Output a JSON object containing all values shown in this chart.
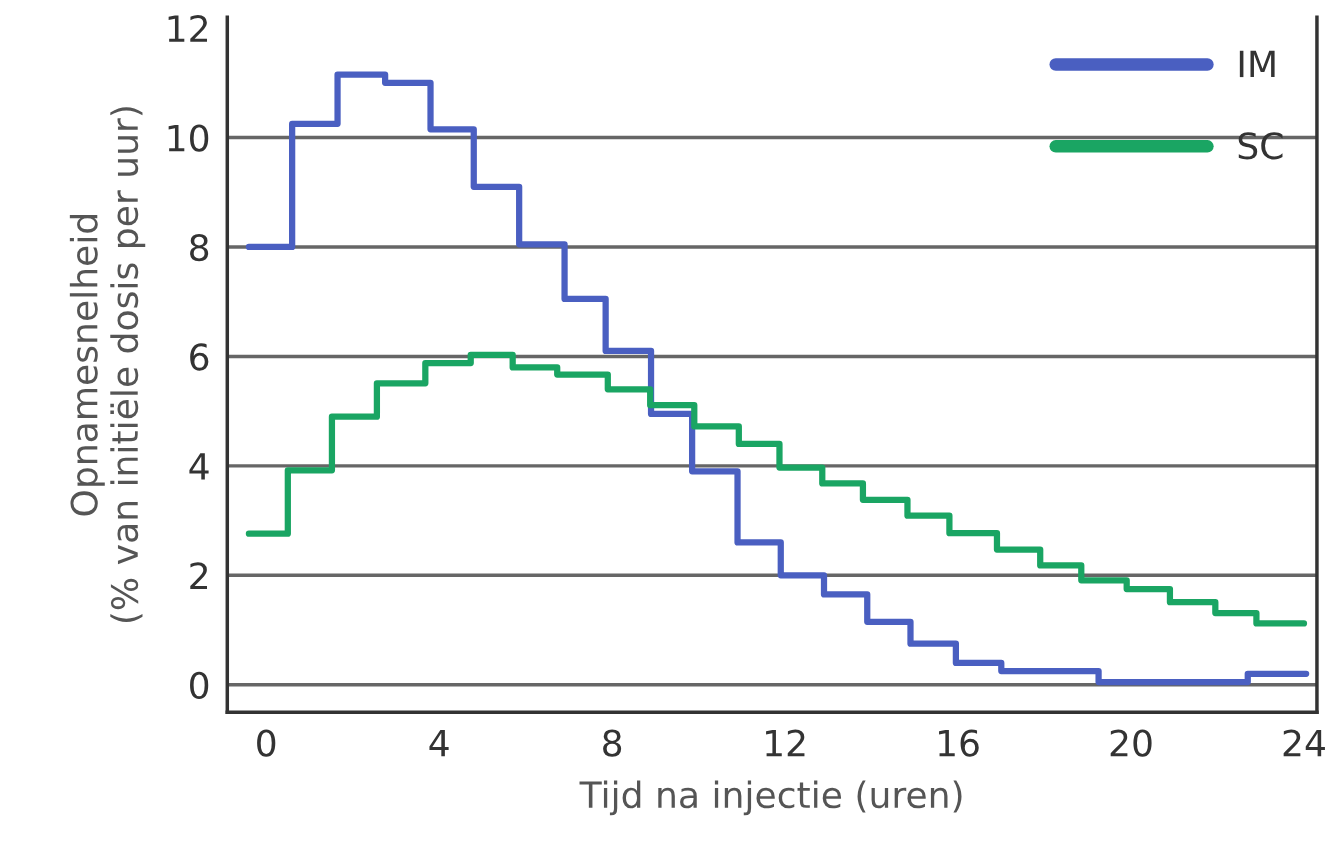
{
  "chart_data": {
    "type": "step",
    "xlabel": "Tijd na injectie (uren)",
    "ylabel": "Opnamesnelheid\n(% van initiële dosis per uur)",
    "xlim": [
      -0.9,
      24.3
    ],
    "xticks": [
      0,
      4,
      8,
      12,
      16,
      20,
      24
    ],
    "ylim": [
      -0.5,
      12.2
    ],
    "yticks": [
      0,
      2,
      4,
      6,
      8,
      10,
      12
    ],
    "grid": "y",
    "legend": "top right",
    "series": [
      {
        "name": "IM",
        "color": "#4a5fc1",
        "x": [
          -0.4,
          0.6,
          1.65,
          2.75,
          3.8,
          4.8,
          5.85,
          6.9,
          7.85,
          8.9,
          9.85,
          10.9,
          11.9,
          12.9,
          13.9,
          14.9,
          15.95,
          17.0,
          19.25,
          22.7,
          24.05
        ],
        "values": [
          8.0,
          10.25,
          11.15,
          11.0,
          10.15,
          9.1,
          8.05,
          7.05,
          6.1,
          4.95,
          3.9,
          2.6,
          2.0,
          1.65,
          1.15,
          0.75,
          0.4,
          0.25,
          0.05,
          0.2,
          0.2
        ]
      },
      {
        "name": "SC",
        "color": "#1aa563",
        "x": [
          -0.4,
          0.5,
          1.52,
          2.56,
          3.68,
          4.73,
          5.7,
          6.73,
          7.9,
          8.88,
          9.9,
          10.93,
          11.87,
          12.86,
          13.8,
          14.83,
          15.8,
          16.9,
          17.9,
          18.85,
          19.9,
          20.9,
          21.95,
          22.9,
          24.0
        ],
        "values": [
          2.76,
          3.92,
          4.9,
          5.51,
          5.88,
          6.03,
          5.8,
          5.67,
          5.4,
          5.11,
          4.72,
          4.4,
          3.97,
          3.68,
          3.38,
          3.09,
          2.77,
          2.47,
          2.18,
          1.91,
          1.75,
          1.51,
          1.31,
          1.12,
          1.12
        ]
      }
    ]
  }
}
